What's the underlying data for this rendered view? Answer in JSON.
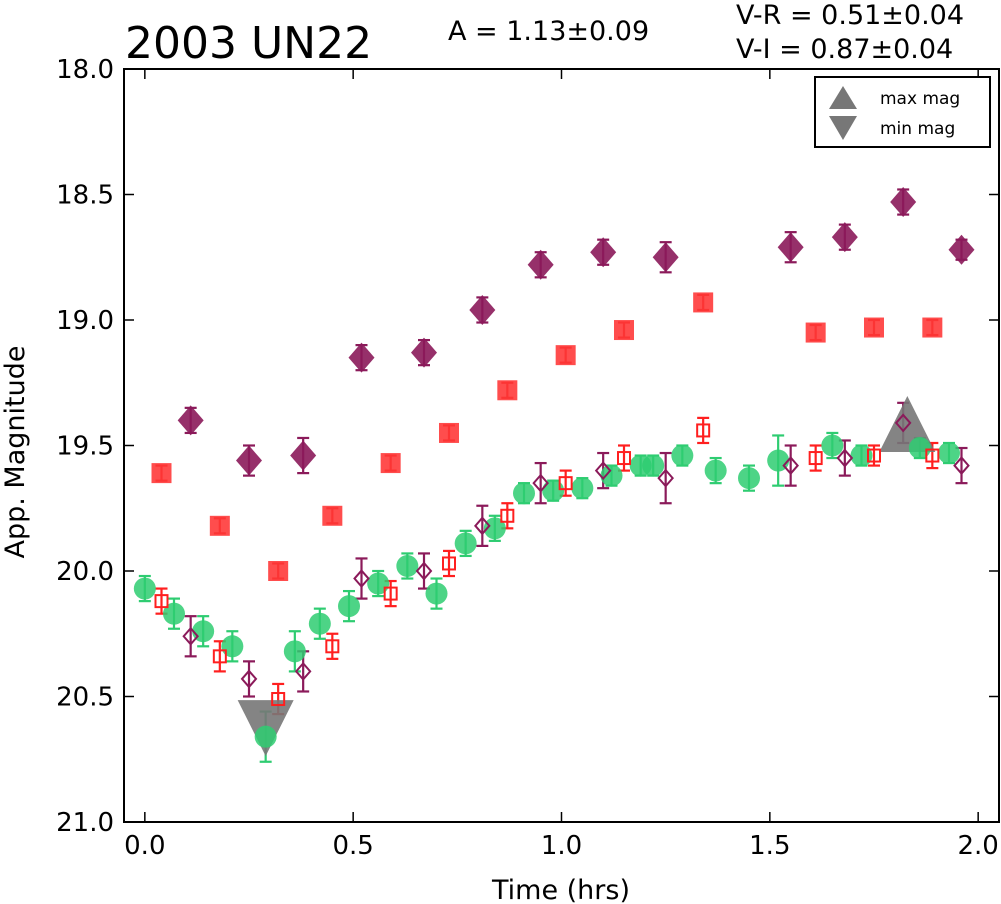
{
  "chart_data": {
    "type": "scatter",
    "title": "2003 UN22",
    "annotations": {
      "amplitude": "A  = 1.13±0.09",
      "vr": "V-R = 0.51±0.04",
      "vi": "V-I  = 0.87±0.04"
    },
    "xlabel": "Time (hrs)",
    "ylabel": "App. Magnitude",
    "xlim": [
      -0.05,
      2.05
    ],
    "ylim": [
      21.0,
      18.0
    ],
    "y_inverted": true,
    "xticks": [
      "0.0",
      "0.5",
      "1.0",
      "1.5",
      "2.0"
    ],
    "yticks": [
      "18.0",
      "18.5",
      "19.0",
      "19.5",
      "20.0",
      "20.5",
      "21.0"
    ],
    "legend": {
      "position": "top-right",
      "entries": [
        "max mag",
        "min mag"
      ]
    },
    "colors": {
      "green": "#2ecc71",
      "red": "#ff1f1f",
      "purple": "#8b1a5a",
      "marker_gray": "#777777"
    },
    "series": [
      {
        "marker": "circle",
        "color": "#2ecc71",
        "x": [
          0.0,
          0.07,
          0.14,
          0.21,
          0.29,
          0.36,
          0.42,
          0.49,
          0.56,
          0.63,
          0.7,
          0.77,
          0.84,
          0.91,
          0.98,
          1.05,
          1.12,
          1.19,
          1.22,
          1.29,
          1.37,
          1.45,
          1.52,
          1.65,
          1.72,
          1.86,
          1.93
        ],
        "y": [
          20.07,
          20.17,
          20.24,
          20.3,
          20.66,
          20.32,
          20.21,
          20.14,
          20.05,
          19.98,
          20.09,
          19.89,
          19.83,
          19.69,
          19.68,
          19.67,
          19.62,
          19.58,
          19.58,
          19.54,
          19.6,
          19.63,
          19.56,
          19.5,
          19.54,
          19.51,
          19.53
        ],
        "err": [
          0.05,
          0.06,
          0.06,
          0.06,
          0.1,
          0.08,
          0.06,
          0.06,
          0.05,
          0.05,
          0.06,
          0.05,
          0.05,
          0.04,
          0.04,
          0.04,
          0.04,
          0.04,
          0.04,
          0.04,
          0.05,
          0.05,
          0.1,
          0.05,
          0.04,
          0.04,
          0.04
        ]
      },
      {
        "marker": "square-open",
        "color": "#ff1f1f",
        "x": [
          0.04,
          0.18,
          0.32,
          0.45,
          0.59,
          0.73,
          0.87,
          1.01,
          1.15,
          1.34,
          1.61,
          1.75,
          1.89
        ],
        "y": [
          20.12,
          20.34,
          20.51,
          20.3,
          20.09,
          19.97,
          19.78,
          19.65,
          19.55,
          19.44,
          19.55,
          19.54,
          19.54
        ],
        "err": [
          0.05,
          0.06,
          0.06,
          0.05,
          0.05,
          0.05,
          0.05,
          0.05,
          0.05,
          0.05,
          0.05,
          0.04,
          0.05
        ]
      },
      {
        "marker": "diamond-open",
        "color": "#8b1a5a",
        "x": [
          0.11,
          0.25,
          0.38,
          0.52,
          0.67,
          0.81,
          0.95,
          1.1,
          1.25,
          1.55,
          1.68,
          1.82,
          1.96
        ],
        "y": [
          20.26,
          20.43,
          20.4,
          20.03,
          20.0,
          19.82,
          19.65,
          19.6,
          19.63,
          19.58,
          19.55,
          19.41,
          19.58
        ],
        "err": [
          0.08,
          0.07,
          0.08,
          0.08,
          0.07,
          0.08,
          0.08,
          0.07,
          0.1,
          0.08,
          0.07,
          0.08,
          0.07
        ]
      },
      {
        "marker": "square-filled",
        "color": "#ff3a3a",
        "x": [
          0.04,
          0.18,
          0.32,
          0.45,
          0.59,
          0.73,
          0.87,
          1.01,
          1.15,
          1.34,
          1.61,
          1.75,
          1.89
        ],
        "y": [
          19.61,
          19.82,
          20.0,
          19.78,
          19.57,
          19.45,
          19.28,
          19.14,
          19.04,
          18.93,
          19.05,
          19.03,
          19.03
        ],
        "err": [
          0.03,
          0.03,
          0.03,
          0.03,
          0.03,
          0.03,
          0.03,
          0.03,
          0.03,
          0.03,
          0.03,
          0.03,
          0.03
        ]
      },
      {
        "marker": "diamond-filled",
        "color": "#8b1a5a",
        "x": [
          0.11,
          0.25,
          0.38,
          0.52,
          0.67,
          0.81,
          0.95,
          1.1,
          1.25,
          1.55,
          1.68,
          1.82,
          1.96
        ],
        "y": [
          19.4,
          19.56,
          19.54,
          19.15,
          19.13,
          18.96,
          18.78,
          18.73,
          18.75,
          18.71,
          18.67,
          18.53,
          18.72
        ],
        "err": [
          0.05,
          0.06,
          0.07,
          0.05,
          0.05,
          0.05,
          0.05,
          0.05,
          0.06,
          0.06,
          0.05,
          0.05,
          0.04
        ]
      }
    ],
    "extrema_markers": [
      {
        "kind": "max",
        "x": 1.83,
        "y": 19.47
      },
      {
        "kind": "min",
        "x": 0.29,
        "y": 20.57
      }
    ]
  }
}
